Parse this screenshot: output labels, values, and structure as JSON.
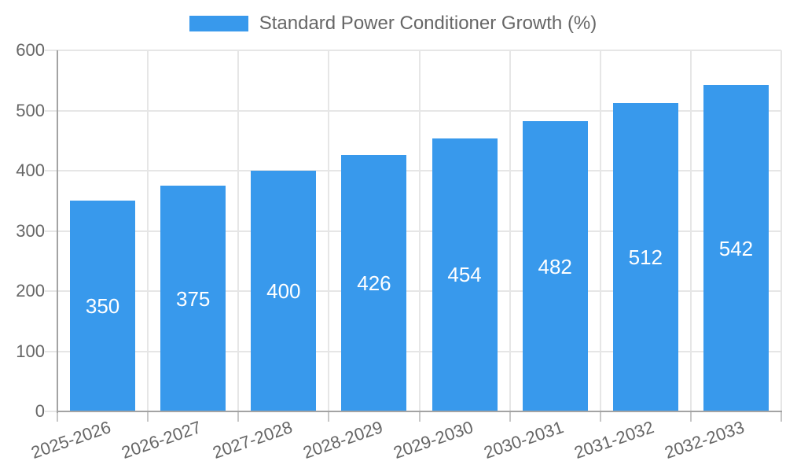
{
  "legend": {
    "label": "Standard Power Conditioner Growth (%)"
  },
  "colors": {
    "bar": "#3899ec",
    "grid": "#e6e6e6",
    "axis": "#a3a3a3",
    "text": "#666666",
    "bar_label": "#ffffff",
    "x_tick_stub": "#c6c6c6",
    "background": "#ffffff"
  },
  "chart_data": {
    "type": "bar",
    "title": "Standard Power Conditioner Growth (%)",
    "categories": [
      "2025-2026",
      "2026-2027",
      "2027-2028",
      "2028-2029",
      "2029-2030",
      "2030-2031",
      "2031-2032",
      "2032-2033"
    ],
    "values": [
      350,
      375,
      400,
      426,
      454,
      482,
      512,
      542
    ],
    "bar_value_labels": [
      "350",
      "375",
      "400",
      "426",
      "454",
      "482",
      "512",
      "542"
    ],
    "y_tick_labels": [
      "0",
      "100",
      "200",
      "300",
      "400",
      "500",
      "600"
    ],
    "xlabel": "",
    "ylabel": "",
    "ylim": [
      0,
      600
    ],
    "ytick_step": 100,
    "grid": true,
    "legend_position": "top",
    "legend_entries": [
      "Standard Power Conditioner Growth (%)"
    ],
    "bar_labels_inside": true,
    "x_label_rotation_deg": -19
  }
}
